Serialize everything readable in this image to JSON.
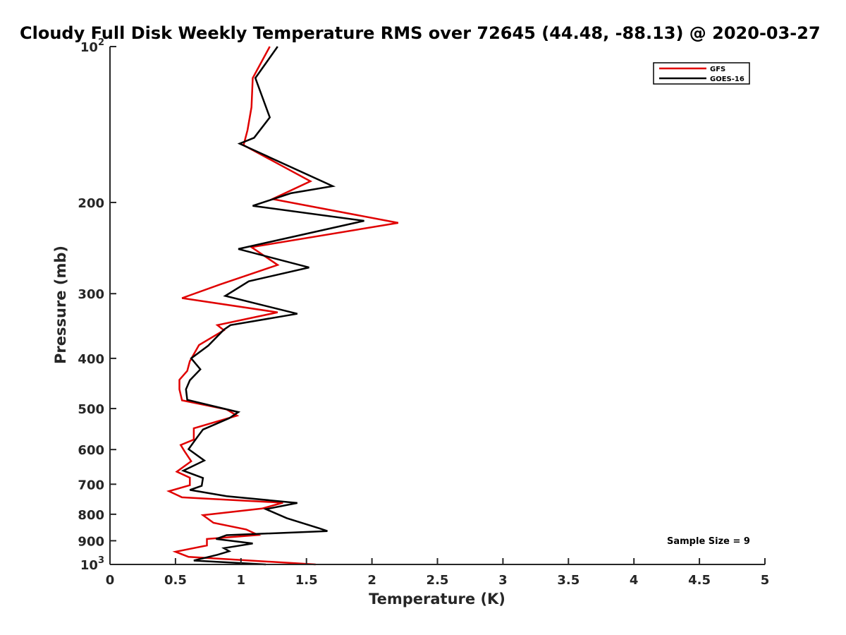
{
  "chart_data": {
    "type": "line",
    "title": "Cloudy Full Disk Weekly Temperature RMS over 72645 (44.48, -88.13) @ 2020-03-27",
    "xlabel": "Temperature (K)",
    "ylabel": "Pressure (mb)",
    "xlim": [
      0,
      5
    ],
    "ylim": [
      100,
      1000
    ],
    "y_scale": "log",
    "y_reversed": true,
    "x_ticks": [
      "0",
      "0.5",
      "1",
      "1.5",
      "2",
      "2.5",
      "3",
      "3.5",
      "4",
      "4.5",
      "5"
    ],
    "y_ticks": [
      {
        "value": 100,
        "base": "10",
        "exp": "2"
      },
      {
        "value": 200,
        "label": "200"
      },
      {
        "value": 300,
        "label": "300"
      },
      {
        "value": 400,
        "label": "400"
      },
      {
        "value": 500,
        "label": "500"
      },
      {
        "value": 600,
        "label": "600"
      },
      {
        "value": 700,
        "label": "700"
      },
      {
        "value": 800,
        "label": "800"
      },
      {
        "value": 900,
        "label": "900"
      },
      {
        "value": 1000,
        "base": "10",
        "exp": "3"
      }
    ],
    "grid": false,
    "legend_position": "top-right",
    "annotation": "Sample Size = 9",
    "series": [
      {
        "name": "GFS",
        "color": "#e00000",
        "points": [
          [
            1.22,
            100
          ],
          [
            1.09,
            115
          ],
          [
            1.08,
            131
          ],
          [
            1.05,
            145
          ],
          [
            1.02,
            155
          ],
          [
            1.53,
            182
          ],
          [
            1.24,
            197
          ],
          [
            2.2,
            219
          ],
          [
            1.08,
            244
          ],
          [
            1.28,
            264
          ],
          [
            0.84,
            288
          ],
          [
            0.55,
            306
          ],
          [
            1.28,
            326
          ],
          [
            0.82,
            345
          ],
          [
            0.87,
            353
          ],
          [
            0.68,
            377
          ],
          [
            0.61,
            405
          ],
          [
            0.59,
            423
          ],
          [
            0.53,
            440
          ],
          [
            0.53,
            459
          ],
          [
            0.55,
            482
          ],
          [
            0.89,
            502
          ],
          [
            0.97,
            516
          ],
          [
            0.64,
            546
          ],
          [
            0.64,
            574
          ],
          [
            0.54,
            588
          ],
          [
            0.57,
            605
          ],
          [
            0.62,
            632
          ],
          [
            0.51,
            662
          ],
          [
            0.61,
            680
          ],
          [
            0.61,
            703
          ],
          [
            0.45,
            722
          ],
          [
            0.55,
            742
          ],
          [
            1.32,
            760
          ],
          [
            1.16,
            780
          ],
          [
            0.71,
            803
          ],
          [
            0.79,
            831
          ],
          [
            1.04,
            856
          ],
          [
            1.13,
            877
          ],
          [
            0.74,
            893
          ],
          [
            0.74,
            919
          ],
          [
            0.5,
            945
          ],
          [
            0.6,
            967
          ],
          [
            1.57,
            1000
          ]
        ]
      },
      {
        "name": "GOES-16",
        "color": "#000000",
        "points": [
          [
            1.28,
            100
          ],
          [
            1.11,
            115
          ],
          [
            1.22,
            137
          ],
          [
            1.1,
            150
          ],
          [
            0.99,
            154
          ],
          [
            1.7,
            186
          ],
          [
            1.38,
            192
          ],
          [
            1.09,
            203
          ],
          [
            1.94,
            217
          ],
          [
            0.98,
            246
          ],
          [
            1.52,
            267
          ],
          [
            1.06,
            284
          ],
          [
            0.88,
            303
          ],
          [
            1.43,
            328
          ],
          [
            0.92,
            345
          ],
          [
            0.87,
            352
          ],
          [
            0.75,
            378
          ],
          [
            0.62,
            400
          ],
          [
            0.69,
            420
          ],
          [
            0.61,
            441
          ],
          [
            0.58,
            459
          ],
          [
            0.59,
            481
          ],
          [
            0.98,
            508
          ],
          [
            0.91,
            522
          ],
          [
            0.71,
            549
          ],
          [
            0.67,
            566
          ],
          [
            0.6,
            599
          ],
          [
            0.72,
            630
          ],
          [
            0.56,
            659
          ],
          [
            0.71,
            681
          ],
          [
            0.7,
            705
          ],
          [
            0.61,
            718
          ],
          [
            0.89,
            738
          ],
          [
            1.43,
            761
          ],
          [
            1.19,
            782
          ],
          [
            1.35,
            814
          ],
          [
            1.6,
            852
          ],
          [
            1.66,
            862
          ],
          [
            0.89,
            878
          ],
          [
            0.81,
            893
          ],
          [
            1.09,
            911
          ],
          [
            0.87,
            930
          ],
          [
            0.91,
            943
          ],
          [
            0.82,
            958
          ],
          [
            0.64,
            983
          ],
          [
            1.19,
            1000
          ]
        ]
      }
    ]
  }
}
